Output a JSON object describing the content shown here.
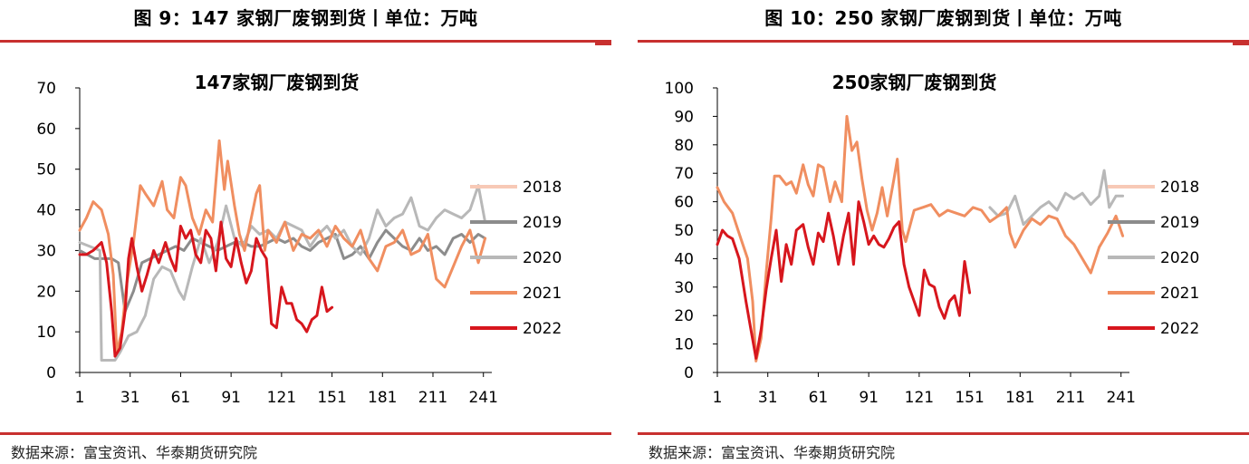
{
  "panels": [
    {
      "figure_title": "图 9：147 家钢厂废钢到货丨单位：万吨",
      "source": "数据来源：富宝资讯、华泰期货研究院",
      "chart_data": {
        "type": "line",
        "title": "147家钢厂废钢到货",
        "xlabel": "",
        "ylabel": "",
        "xlim": [
          1,
          246
        ],
        "ylim": [
          0,
          70
        ],
        "xticks": [
          1,
          31,
          61,
          91,
          121,
          151,
          181,
          211,
          241
        ],
        "yticks": [
          0,
          10,
          20,
          30,
          40,
          50,
          60,
          70
        ],
        "legend_position": "right",
        "grid": false,
        "series": [
          {
            "name": "2018",
            "color": "#f7c9b6",
            "width": 3,
            "x": [],
            "y": []
          },
          {
            "name": "2019",
            "color": "#8c8c8c",
            "width": 3,
            "x": [
              1,
              10,
              20,
              24,
              28,
              33,
              38,
              43,
              48,
              53,
              58,
              63,
              68,
              73,
              78,
              83,
              88,
              93,
              98,
              103,
              108,
              113,
              118,
              123,
              128,
              133,
              138,
              143,
              148,
              153,
              158,
              163,
              168,
              173,
              178,
              183,
              188,
              193,
              198,
              203,
              208,
              213,
              218,
              223,
              228,
              233,
              238,
              242
            ],
            "y": [
              30,
              28,
              28,
              27,
              15,
              20,
              27,
              28,
              29,
              30,
              31,
              30,
              33,
              32,
              31,
              30,
              31,
              32,
              32,
              31,
              31,
              32,
              33,
              32,
              33,
              31,
              30,
              32,
              33,
              34,
              28,
              29,
              31,
              28,
              32,
              35,
              33,
              31,
              30,
              33,
              30,
              31,
              29,
              33,
              34,
              32,
              34,
              33
            ]
          },
          {
            "name": "2020",
            "color": "#b8b8b8",
            "width": 3,
            "x": [
              1,
              7,
              13,
              14,
              22,
              25,
              30,
              35,
              40,
              45,
              50,
              55,
              60,
              63,
              68,
              73,
              78,
              83,
              88,
              93,
              98,
              103,
              108,
              113,
              118,
              123,
              128,
              133,
              138,
              143,
              148,
              153,
              158,
              163,
              168,
              173,
              178,
              183,
              188,
              193,
              198,
              203,
              208,
              213,
              218,
              223,
              228,
              233,
              238,
              242
            ],
            "y": [
              32,
              31,
              30,
              3,
              3,
              5,
              9,
              10,
              14,
              23,
              26,
              25,
              20,
              18,
              26,
              33,
              27,
              32,
              41,
              33,
              31,
              36,
              34,
              35,
              33,
              37,
              36,
              35,
              31,
              34,
              36,
              33,
              35,
              31,
              29,
              33,
              40,
              36,
              38,
              39,
              43,
              36,
              35,
              38,
              40,
              39,
              38,
              40,
              46,
              37
            ]
          },
          {
            "name": "2021",
            "color": "#f08e60",
            "width": 3,
            "x": [
              1,
              5,
              9,
              14,
              18,
              21,
              23,
              26,
              29,
              33,
              37,
              40,
              45,
              50,
              53,
              57,
              61,
              64,
              68,
              72,
              76,
              80,
              84,
              87,
              89,
              93,
              96,
              99,
              102,
              106,
              108,
              111,
              113,
              118,
              123,
              128,
              133,
              138,
              143,
              148,
              153,
              158,
              163,
              168,
              173,
              178,
              183,
              188,
              193,
              198,
              203,
              208,
              213,
              218,
              223,
              228,
              233,
              238,
              242
            ],
            "y": [
              35,
              38,
              42,
              40,
              34,
              24,
              5,
              10,
              22,
              32,
              46,
              44,
              41,
              47,
              40,
              38,
              48,
              46,
              38,
              34,
              40,
              37,
              57,
              45,
              52,
              41,
              34,
              30,
              36,
              44,
              46,
              30,
              35,
              32,
              37,
              30,
              34,
              33,
              35,
              31,
              36,
              33,
              31,
              35,
              28,
              25,
              31,
              32,
              35,
              29,
              30,
              34,
              23,
              21,
              26,
              31,
              35,
              27,
              33
            ]
          },
          {
            "name": "2022",
            "color": "#d7161d",
            "width": 3,
            "x": [
              1,
              5,
              9,
              14,
              17,
              20,
              22,
              25,
              28,
              30,
              32,
              35,
              38,
              41,
              45,
              48,
              52,
              55,
              58,
              61,
              64,
              67,
              70,
              73,
              76,
              79,
              82,
              85,
              88,
              91,
              94,
              97,
              100,
              103,
              106,
              109,
              112,
              115,
              118,
              121,
              124,
              127,
              130,
              133,
              136,
              139,
              142,
              145,
              148,
              151
            ],
            "y": [
              29,
              29,
              30,
              32,
              27,
              15,
              4,
              6,
              15,
              28,
              33,
              26,
              20,
              24,
              30,
              27,
              32,
              28,
              25,
              36,
              33,
              35,
              29,
              27,
              35,
              33,
              25,
              37,
              28,
              26,
              33,
              27,
              22,
              25,
              33,
              30,
              28,
              12,
              11,
              21,
              17,
              17,
              13,
              12,
              10,
              13,
              14,
              21,
              15,
              16
            ]
          }
        ]
      }
    },
    {
      "figure_title": "图 10：250 家钢厂废钢到货丨单位：万吨",
      "source": "数据来源：富宝资讯、华泰期货研究院",
      "chart_data": {
        "type": "line",
        "title": "250家钢厂废钢到货",
        "xlabel": "",
        "ylabel": "",
        "xlim": [
          1,
          246
        ],
        "ylim": [
          0,
          100
        ],
        "xticks": [
          1,
          31,
          61,
          91,
          121,
          151,
          181,
          211,
          241
        ],
        "yticks": [
          0,
          10,
          20,
          30,
          40,
          50,
          60,
          70,
          80,
          90,
          100
        ],
        "legend_position": "right",
        "grid": false,
        "series": [
          {
            "name": "2018",
            "color": "#f7c9b6",
            "width": 3,
            "x": [],
            "y": []
          },
          {
            "name": "2019",
            "color": "#8c8c8c",
            "width": 3,
            "x": [],
            "y": []
          },
          {
            "name": "2020",
            "color": "#b8b8b8",
            "width": 3,
            "x": [
              163,
              168,
              173,
              178,
              183,
              188,
              193,
              198,
              203,
              208,
              213,
              218,
              223,
              228,
              231,
              234,
              238,
              242
            ],
            "y": [
              58,
              55,
              56,
              62,
              52,
              55,
              58,
              60,
              57,
              63,
              61,
              63,
              59,
              62,
              71,
              58,
              62,
              62
            ]
          },
          {
            "name": "2021",
            "color": "#f08e60",
            "width": 3,
            "x": [
              1,
              5,
              10,
              15,
              19,
              22,
              24,
              27,
              30,
              33,
              35,
              38,
              42,
              45,
              48,
              52,
              55,
              58,
              61,
              64,
              68,
              71,
              75,
              78,
              81,
              84,
              87,
              90,
              93,
              96,
              99,
              102,
              106,
              108,
              111,
              113,
              118,
              123,
              128,
              133,
              138,
              143,
              148,
              153,
              158,
              163,
              168,
              173,
              175,
              178,
              183,
              188,
              193,
              198,
              203,
              208,
              213,
              218,
              223,
              228,
              233,
              238,
              242
            ],
            "y": [
              65,
              60,
              56,
              47,
              40,
              25,
              4,
              12,
              35,
              54,
              69,
              69,
              66,
              67,
              63,
              73,
              66,
              62,
              73,
              72,
              60,
              67,
              60,
              90,
              78,
              81,
              68,
              57,
              50,
              56,
              65,
              55,
              68,
              75,
              50,
              46,
              57,
              58,
              59,
              55,
              57,
              56,
              55,
              58,
              57,
              53,
              55,
              58,
              49,
              44,
              50,
              54,
              52,
              55,
              54,
              48,
              45,
              40,
              35,
              44,
              49,
              55,
              48
            ]
          },
          {
            "name": "2022",
            "color": "#d7161d",
            "width": 3,
            "x": [
              1,
              4,
              7,
              10,
              14,
              18,
              21,
              24,
              27,
              30,
              33,
              36,
              39,
              42,
              45,
              48,
              52,
              55,
              58,
              61,
              64,
              67,
              70,
              73,
              76,
              79,
              82,
              85,
              88,
              91,
              94,
              97,
              100,
              103,
              106,
              109,
              112,
              115,
              118,
              121,
              124,
              127,
              130,
              133,
              136,
              139,
              142,
              145,
              148,
              151
            ],
            "y": [
              45,
              50,
              48,
              47,
              40,
              25,
              15,
              5,
              15,
              29,
              40,
              50,
              32,
              45,
              38,
              50,
              52,
              44,
              38,
              49,
              46,
              56,
              48,
              38,
              48,
              56,
              38,
              60,
              53,
              45,
              48,
              45,
              44,
              47,
              51,
              53,
              38,
              30,
              25,
              20,
              36,
              31,
              30,
              23,
              19,
              25,
              27,
              20,
              39,
              28
            ]
          }
        ]
      }
    }
  ]
}
